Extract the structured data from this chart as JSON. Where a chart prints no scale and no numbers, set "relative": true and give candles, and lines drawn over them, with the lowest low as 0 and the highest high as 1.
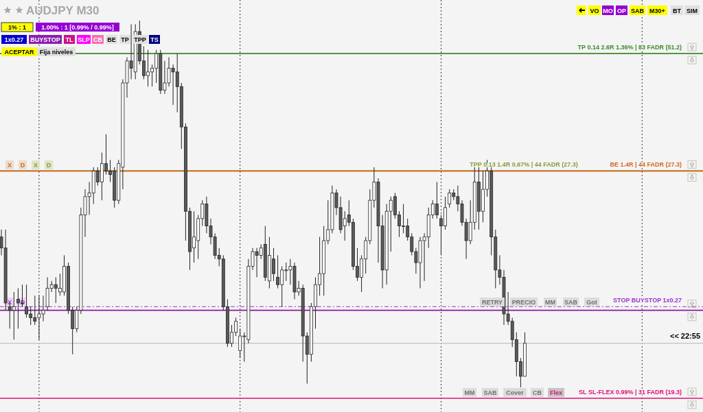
{
  "chart_data": {
    "type": "candlestick",
    "title": "AUDJPY M30",
    "relative": true,
    "categories": [
      null,
      null,
      null,
      null,
      null,
      null,
      null,
      null,
      null,
      null,
      null,
      null,
      null,
      null,
      null,
      null,
      null,
      null,
      null,
      null,
      null,
      null,
      null,
      null,
      null,
      null,
      null,
      null,
      null,
      null,
      null,
      null,
      null,
      null,
      null,
      null,
      null,
      null,
      null,
      null,
      null,
      null,
      null,
      null,
      null,
      null,
      null,
      null,
      null,
      null,
      null,
      null,
      null,
      null,
      null,
      null,
      null,
      null,
      null,
      null,
      null,
      null,
      null,
      null,
      null,
      null,
      null,
      null,
      null,
      null,
      null,
      null,
      null,
      null,
      null,
      null,
      null,
      null,
      null,
      null,
      null,
      null,
      null,
      null,
      null,
      null,
      null,
      null,
      null,
      null,
      null,
      null,
      null,
      null,
      null,
      null,
      null,
      null,
      null,
      null,
      null,
      null,
      null,
      null,
      null,
      null,
      null,
      null,
      null,
      null,
      null,
      null,
      null,
      null,
      null,
      null,
      null,
      null,
      null,
      null,
      null,
      null,
      null,
      null,
      null,
      null
    ],
    "ohlc": [
      [
        0.41,
        0.43,
        0.36,
        0.38
      ],
      [
        0.38,
        0.43,
        0.21,
        0.23
      ],
      [
        0.22,
        0.23,
        0.16,
        0.21
      ],
      [
        0.21,
        0.26,
        0.13,
        0.22
      ],
      [
        0.24,
        0.27,
        0.16,
        0.23
      ],
      [
        0.23,
        0.28,
        0.22,
        0.23
      ],
      [
        0.22,
        0.28,
        0.19,
        0.2
      ],
      [
        0.2,
        0.22,
        0.17,
        0.19
      ],
      [
        0.19,
        0.25,
        0.17,
        0.18
      ],
      [
        0.19,
        0.25,
        0.13,
        0.2
      ],
      [
        0.2,
        0.25,
        0.18,
        0.21
      ],
      [
        0.22,
        0.3,
        0.21,
        0.27
      ],
      [
        0.27,
        0.29,
        0.26,
        0.28
      ],
      [
        0.28,
        0.3,
        0.23,
        0.27
      ],
      [
        0.26,
        0.31,
        0.25,
        0.27
      ],
      [
        0.26,
        0.36,
        0.25,
        0.33
      ],
      [
        0.33,
        0.34,
        0.2,
        0.21
      ],
      [
        0.21,
        0.22,
        0.09,
        0.16
      ],
      [
        0.16,
        0.22,
        0.15,
        0.21
      ],
      [
        0.21,
        0.49,
        0.2,
        0.47
      ],
      [
        0.47,
        0.54,
        0.41,
        0.52
      ],
      [
        0.52,
        0.56,
        0.47,
        0.53
      ],
      [
        0.53,
        0.6,
        0.5,
        0.59
      ],
      [
        0.59,
        0.6,
        0.55,
        0.56
      ],
      [
        0.56,
        0.64,
        0.51,
        0.61
      ],
      [
        0.61,
        0.69,
        0.58,
        0.59
      ],
      [
        0.59,
        0.62,
        0.56,
        0.58
      ],
      [
        0.59,
        0.6,
        0.49,
        0.51
      ],
      [
        0.51,
        0.62,
        0.5,
        0.61
      ],
      [
        0.6,
        0.84,
        0.54,
        0.83
      ],
      [
        0.83,
        0.9,
        0.79,
        0.89
      ],
      [
        0.89,
        0.99,
        0.84,
        0.87
      ],
      [
        0.86,
        0.99,
        0.84,
        0.97
      ],
      [
        0.97,
        1,
        0.88,
        0.89
      ],
      [
        0.89,
        0.93,
        0.84,
        0.85
      ],
      [
        0.85,
        0.92,
        0.82,
        0.86
      ],
      [
        0.86,
        0.88,
        0.82,
        0.87
      ],
      [
        0.87,
        0.92,
        0.83,
        0.91
      ],
      [
        0.91,
        0.92,
        0.8,
        0.81
      ],
      [
        0.81,
        0.89,
        0.8,
        0.83
      ],
      [
        0.83,
        0.9,
        0.82,
        0.87
      ],
      [
        0.87,
        0.88,
        0.77,
        0.86
      ],
      [
        0.86,
        0.91,
        0.75,
        0.82
      ],
      [
        0.82,
        0.83,
        0.65,
        0.71
      ],
      [
        0.71,
        0.72,
        0.4,
        0.48
      ],
      [
        0.48,
        0.49,
        0.32,
        0.37
      ],
      [
        0.38,
        0.48,
        0.34,
        0.41
      ],
      [
        0.4,
        0.47,
        0.35,
        0.46
      ],
      [
        0.46,
        0.51,
        0.44,
        0.5
      ],
      [
        0.5,
        0.52,
        0.42,
        0.44
      ],
      [
        0.44,
        0.46,
        0.39,
        0.41
      ],
      [
        0.41,
        0.42,
        0.35,
        0.36
      ],
      [
        0.36,
        0.38,
        0.33,
        0.35
      ],
      [
        0.35,
        0.36,
        0.21,
        0.22
      ],
      [
        0.22,
        0.24,
        0.11,
        0.12
      ],
      [
        0.12,
        0.17,
        0.11,
        0.15
      ],
      [
        0.15,
        0.19,
        0.14,
        0.18
      ],
      [
        0.1,
        0.16,
        0.08,
        0.14
      ],
      [
        0.14,
        0.15,
        0.07,
        0.14
      ],
      [
        0.13,
        0.35,
        0.12,
        0.33
      ],
      [
        0.33,
        0.38,
        0.32,
        0.37
      ],
      [
        0.37,
        0.38,
        0.3,
        0.36
      ],
      [
        0.36,
        0.39,
        0.35,
        0.38
      ],
      [
        0.39,
        0.44,
        0.29,
        0.3
      ],
      [
        0.29,
        0.41,
        0.27,
        0.36
      ],
      [
        0.35,
        0.38,
        0.29,
        0.31
      ],
      [
        0.3,
        0.36,
        0.27,
        0.28
      ],
      [
        0.28,
        0.33,
        0.22,
        0.32
      ],
      [
        0.32,
        0.34,
        0.29,
        0.32
      ],
      [
        0.32,
        0.35,
        0.28,
        0.33
      ],
      [
        0.33,
        0.34,
        0.24,
        0.26
      ],
      [
        0.26,
        0.29,
        0.25,
        0.27
      ],
      [
        0.27,
        0.28,
        0.07,
        0.14
      ],
      [
        0.14,
        0.15,
        0.01,
        0.09
      ],
      [
        0.09,
        0.23,
        0.07,
        0.22
      ],
      [
        0.22,
        0.3,
        0.16,
        0.28
      ],
      [
        0.28,
        0.41,
        0.25,
        0.31
      ],
      [
        0.31,
        0.44,
        0.25,
        0.4
      ],
      [
        0.4,
        0.51,
        0.39,
        0.43
      ],
      [
        0.43,
        0.55,
        0.42,
        0.53
      ],
      [
        0.53,
        0.54,
        0.47,
        0.49
      ],
      [
        0.49,
        0.52,
        0.42,
        0.43
      ],
      [
        0.44,
        0.48,
        0.4,
        0.46
      ],
      [
        0.47,
        0.51,
        0.44,
        0.45
      ],
      [
        0.45,
        0.46,
        0.32,
        0.33
      ],
      [
        0.33,
        0.38,
        0.29,
        0.3
      ],
      [
        0.3,
        0.36,
        0.26,
        0.35
      ],
      [
        0.35,
        0.41,
        0.31,
        0.4
      ],
      [
        0.4,
        0.54,
        0.39,
        0.51
      ],
      [
        0.51,
        0.6,
        0.49,
        0.56
      ],
      [
        0.56,
        0.57,
        0.34,
        0.44
      ],
      [
        0.44,
        0.47,
        0.27,
        0.32
      ],
      [
        0.32,
        0.5,
        0.28,
        0.48
      ],
      [
        0.48,
        0.52,
        0.37,
        0.51
      ],
      [
        0.52,
        0.53,
        0.46,
        0.47
      ],
      [
        0.47,
        0.48,
        0.41,
        0.44
      ],
      [
        0.44,
        0.5,
        0.42,
        0.44
      ],
      [
        0.44,
        0.46,
        0.4,
        0.41
      ],
      [
        0.41,
        0.42,
        0.36,
        0.37
      ],
      [
        0.37,
        0.38,
        0.31,
        0.34
      ],
      [
        0.34,
        0.41,
        0.27,
        0.4
      ],
      [
        0.4,
        0.42,
        0.29,
        0.41
      ],
      [
        0.41,
        0.49,
        0.38,
        0.47
      ],
      [
        0.47,
        0.51,
        0.46,
        0.5
      ],
      [
        0.5,
        0.56,
        0.46,
        0.47
      ],
      [
        0.46,
        0.47,
        0.36,
        0.44
      ],
      [
        0.44,
        0.52,
        0.43,
        0.49
      ],
      [
        0.5,
        0.54,
        0.49,
        0.53
      ],
      [
        0.53,
        0.54,
        0.51,
        0.52
      ],
      [
        0.52,
        0.55,
        0.48,
        0.5
      ],
      [
        0.5,
        0.51,
        0.44,
        0.45
      ],
      [
        0.45,
        0.46,
        0.35,
        0.4
      ],
      [
        0.4,
        0.51,
        0.39,
        0.45
      ],
      [
        0.45,
        0.6,
        0.43,
        0.56
      ],
      [
        0.56,
        0.6,
        0.43,
        0.48
      ],
      [
        0.48,
        0.59,
        0.45,
        0.54
      ],
      [
        0.54,
        0.62,
        0.52,
        0.59
      ],
      [
        0.59,
        0.6,
        0.36,
        0.41
      ],
      [
        0.41,
        0.43,
        0.27,
        0.32
      ],
      [
        0.32,
        0.36,
        0.28,
        0.3
      ],
      [
        0.3,
        0.32,
        0.17,
        0.2
      ],
      [
        0.2,
        0.26,
        0.17,
        0.18
      ],
      [
        0.18,
        0.19,
        0.11,
        0.13
      ],
      [
        0.13,
        0.15,
        0.03,
        0.07
      ],
      [
        0.07,
        0.08,
        0,
        0.03
      ],
      [
        0.03,
        0.15,
        0.03,
        0.12
      ]
    ],
    "ref_lines": [
      {
        "axis": "y",
        "value": 0.91,
        "label": "TP 0.14 2.6R 1.36% | 83 FADR (51.2)",
        "color": "#3a8a2a",
        "line_style": "solid"
      },
      {
        "axis": "y",
        "value": 0.59,
        "label": "TPP 0.13 1.4R 0.67% | 44 FADR (27.3)",
        "color": "#8a9a3a",
        "line_style": "solid"
      },
      {
        "axis": "y",
        "value": 0.59,
        "label": "BE 1.4R | 44 FADR (27.3)",
        "color": "#d2691e",
        "line_style": "solid"
      },
      {
        "axis": "y",
        "value": 0.22,
        "label": "STOP  BUYSTOP  1x0.27",
        "color": "#9932cc",
        "line_style": "dashed"
      },
      {
        "axis": "y",
        "value": 0.21,
        "color": "#8b1a9b",
        "line_style": "solid"
      },
      {
        "axis": "y",
        "value": -0.03,
        "label": "SL  SL-FLEX 0.99% | 31 FADR (19.3)",
        "color": "#e0107a",
        "line_style": "solid"
      },
      {
        "axis": "y",
        "value": 0.12,
        "color": "#c8c8c8",
        "line_style": "solid"
      }
    ],
    "annotations": [
      "1% : 1",
      "1.00% : 1 [0.99% / 0.99%]",
      "1x0.27",
      "BUYSTOP",
      "TL",
      "SLP",
      "CB",
      "BE",
      "TP",
      "TPP",
      "TS",
      "ACEPTAR",
      "Fija niveles",
      "VO",
      "MO",
      "OP",
      "SAB",
      "M30+",
      "BT",
      "SIM",
      "X",
      "D",
      "X",
      "D",
      "X",
      "D",
      "RETRY",
      "PRECIO",
      "MM",
      "SAB",
      "Got",
      "MM",
      "SAB",
      "Cover",
      "CB",
      "Flex",
      "<< 22:55"
    ]
  }
}
